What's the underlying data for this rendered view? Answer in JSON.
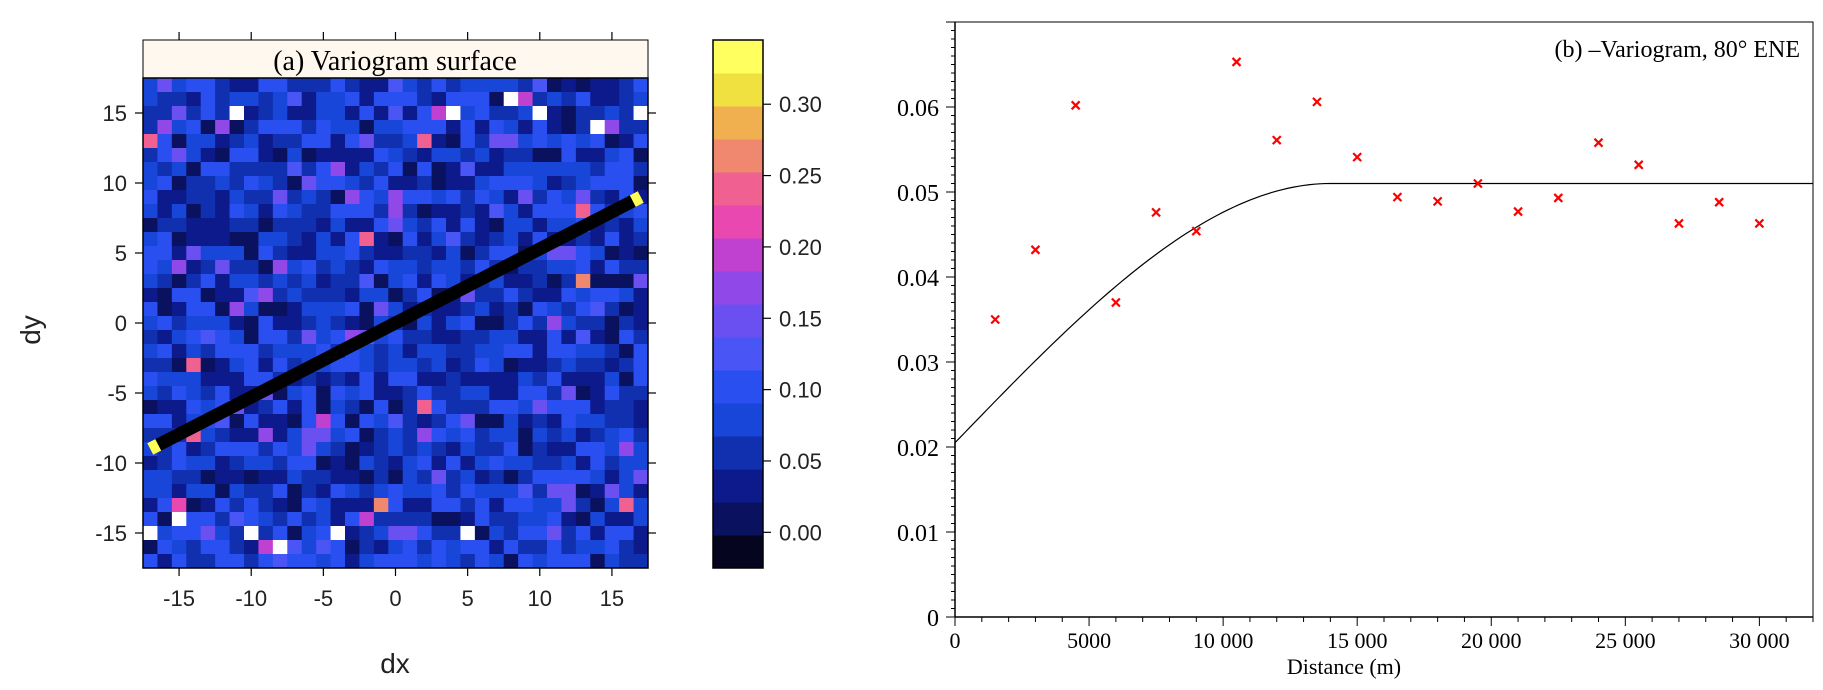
{
  "chart_data": [
    {
      "type": "heatmap",
      "title": "(a) Variogram surface",
      "xlabel": "dx",
      "ylabel": "dy",
      "xlim": [
        -17.5,
        17.5
      ],
      "ylim": [
        -17.5,
        17.5
      ],
      "xticks": [
        -15,
        -10,
        -5,
        0,
        5,
        10,
        15
      ],
      "yticks": [
        -15,
        -10,
        -5,
        0,
        5,
        10,
        15
      ],
      "tick_labels_x": [
        "-15",
        "-10",
        "-5",
        "0",
        "5",
        "10",
        "15"
      ],
      "tick_labels_y": [
        "-15",
        "-10",
        "-5",
        "0",
        "5",
        "10",
        "15"
      ],
      "colorbar": {
        "range": [
          -0.025,
          0.345
        ],
        "ticks": [
          0.0,
          0.05,
          0.1,
          0.15,
          0.2,
          0.25,
          0.3
        ],
        "tick_labels": [
          "0.00",
          "0.05",
          "0.10",
          "0.15",
          "0.20",
          "0.25",
          "0.30"
        ],
        "levels": 15,
        "colors": [
          "#050520",
          "#0a1260",
          "#0d1a8c",
          "#1030b0",
          "#1846d8",
          "#2a4ff0",
          "#4a55f5",
          "#6a50f0",
          "#9048e8",
          "#c040d0",
          "#e848b0",
          "#f06090",
          "#f08870",
          "#f0b050",
          "#f0e040",
          "#ffff60"
        ]
      },
      "grid_size": 35,
      "direction_line": {
        "x": [
          -17,
          17
        ],
        "y": [
          -9,
          9
        ]
      },
      "notable_cells": [
        {
          "dx": -11,
          "dy": 15,
          "v": 0.34
        },
        {
          "dx": 4,
          "dy": 15,
          "v": 0.34
        },
        {
          "dx": 8,
          "dy": 16,
          "v": 0.34
        },
        {
          "dx": 10,
          "dy": 15,
          "v": 0.34
        },
        {
          "dx": 14,
          "dy": 14,
          "v": 0.34
        },
        {
          "dx": 17,
          "dy": 15,
          "v": 0.34
        },
        {
          "dx": 9,
          "dy": 16,
          "v": 0.2
        },
        {
          "dx": 3,
          "dy": 15,
          "v": 0.2
        },
        {
          "dx": 2,
          "dy": 13,
          "v": 0.24
        },
        {
          "dx": -17,
          "dy": 13,
          "v": 0.25
        },
        {
          "dx": 15,
          "dy": 14,
          "v": 0.18
        },
        {
          "dx": 13,
          "dy": 8,
          "v": 0.24
        },
        {
          "dx": -2,
          "dy": 6,
          "v": 0.25
        },
        {
          "dx": 13,
          "dy": 3,
          "v": 0.26
        },
        {
          "dx": -14,
          "dy": -3,
          "v": 0.24
        },
        {
          "dx": -5,
          "dy": -7,
          "v": 0.19
        },
        {
          "dx": 2,
          "dy": -6,
          "v": 0.24
        },
        {
          "dx": -14,
          "dy": -8,
          "v": 0.25
        },
        {
          "dx": -1,
          "dy": -13,
          "v": 0.26
        },
        {
          "dx": -2,
          "dy": -14,
          "v": 0.2
        },
        {
          "dx": -15,
          "dy": -13,
          "v": 0.22
        },
        {
          "dx": 16,
          "dy": -13,
          "v": 0.24
        },
        {
          "dx": -15,
          "dy": -14,
          "v": 0.34
        },
        {
          "dx": -17,
          "dy": -15,
          "v": 0.34
        },
        {
          "dx": -10,
          "dy": -15,
          "v": 0.34
        },
        {
          "dx": -9,
          "dy": -16,
          "v": 0.2
        },
        {
          "dx": -8,
          "dy": -16,
          "v": 0.34
        },
        {
          "dx": -4,
          "dy": -15,
          "v": 0.34
        },
        {
          "dx": 5,
          "dy": -15,
          "v": 0.34
        }
      ]
    },
    {
      "type": "scatter",
      "title": "(b)  –Variogram, 80° ENE",
      "xlabel": "Distance (m)",
      "ylabel": "",
      "xlim": [
        0,
        32000
      ],
      "ylim": [
        0,
        0.07
      ],
      "xticks": [
        0,
        5000,
        10000,
        15000,
        20000,
        25000,
        30000
      ],
      "tick_labels_x": [
        "0",
        "5000",
        "10 000",
        "15 000",
        "20 000",
        "25 000",
        "30 000"
      ],
      "yticks": [
        0,
        0.01,
        0.02,
        0.03,
        0.04,
        0.05,
        0.06
      ],
      "tick_labels_y": [
        "0",
        "0.01",
        "0.02",
        "0.03",
        "0.04",
        "0.05",
        "0.06"
      ],
      "series": [
        {
          "type": "scatter",
          "marker": "x",
          "color": "#ff0000",
          "x": [
            1500,
            3000,
            4500,
            6000,
            7500,
            9000,
            10500,
            12000,
            13500,
            15000,
            16500,
            18000,
            19500,
            21000,
            22500,
            24000,
            25500,
            27000,
            28500,
            30000
          ],
          "y": [
            0.035,
            0.0432,
            0.0602,
            0.037,
            0.0476,
            0.0454,
            0.0653,
            0.0561,
            0.0606,
            0.0541,
            0.0494,
            0.0489,
            0.051,
            0.0477,
            0.0493,
            0.0558,
            0.0532,
            0.0463,
            0.0488,
            0.0463
          ]
        },
        {
          "type": "line",
          "color": "#000000",
          "model": "spherical",
          "nugget": 0.0205,
          "sill": 0.051,
          "range": 14000,
          "x_max": 32000
        }
      ]
    }
  ]
}
